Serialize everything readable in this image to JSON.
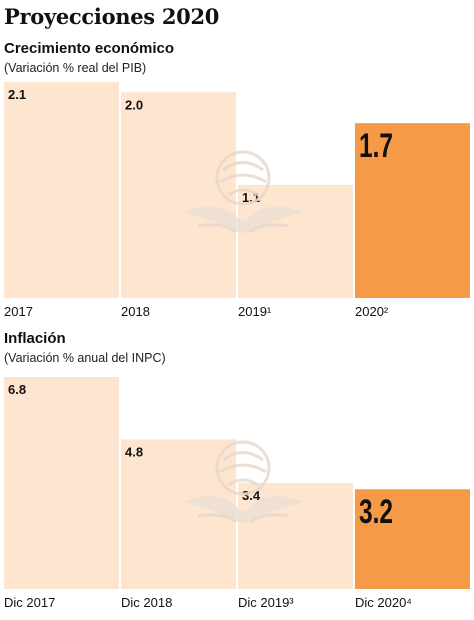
{
  "title": "Proyecciones 2020",
  "colors": {
    "bar": "#fde5cf",
    "highlight": "#f59b48",
    "divider": "#ffffff",
    "text": "#1a1a1a"
  },
  "watermark_icon": "eagle-seal-icon",
  "chart_data": [
    {
      "type": "bar",
      "title": "Crecimiento económico",
      "subtitle": "(Variación % real del PIB)",
      "categories": [
        "2017",
        "2018",
        "2019¹",
        "2020²"
      ],
      "values": [
        2.1,
        2.0,
        1.1,
        1.7
      ],
      "value_labels": [
        "2.1",
        "2.0",
        "1.1",
        "1.7"
      ],
      "highlight_index": 3,
      "ylim": [
        0,
        2.1
      ],
      "grid": false,
      "legend": "none"
    },
    {
      "type": "bar",
      "title": "Inflación",
      "subtitle": "(Variación % anual del INPC)",
      "categories": [
        "Dic 2017",
        "Dic 2018",
        "Dic 2019³",
        "Dic 2020⁴"
      ],
      "values": [
        6.8,
        4.8,
        3.4,
        3.2
      ],
      "value_labels": [
        "6.8",
        "4.8",
        "3.4",
        "3.2"
      ],
      "highlight_index": 3,
      "ylim": [
        0,
        6.8
      ],
      "grid": false,
      "legend": "none"
    }
  ]
}
